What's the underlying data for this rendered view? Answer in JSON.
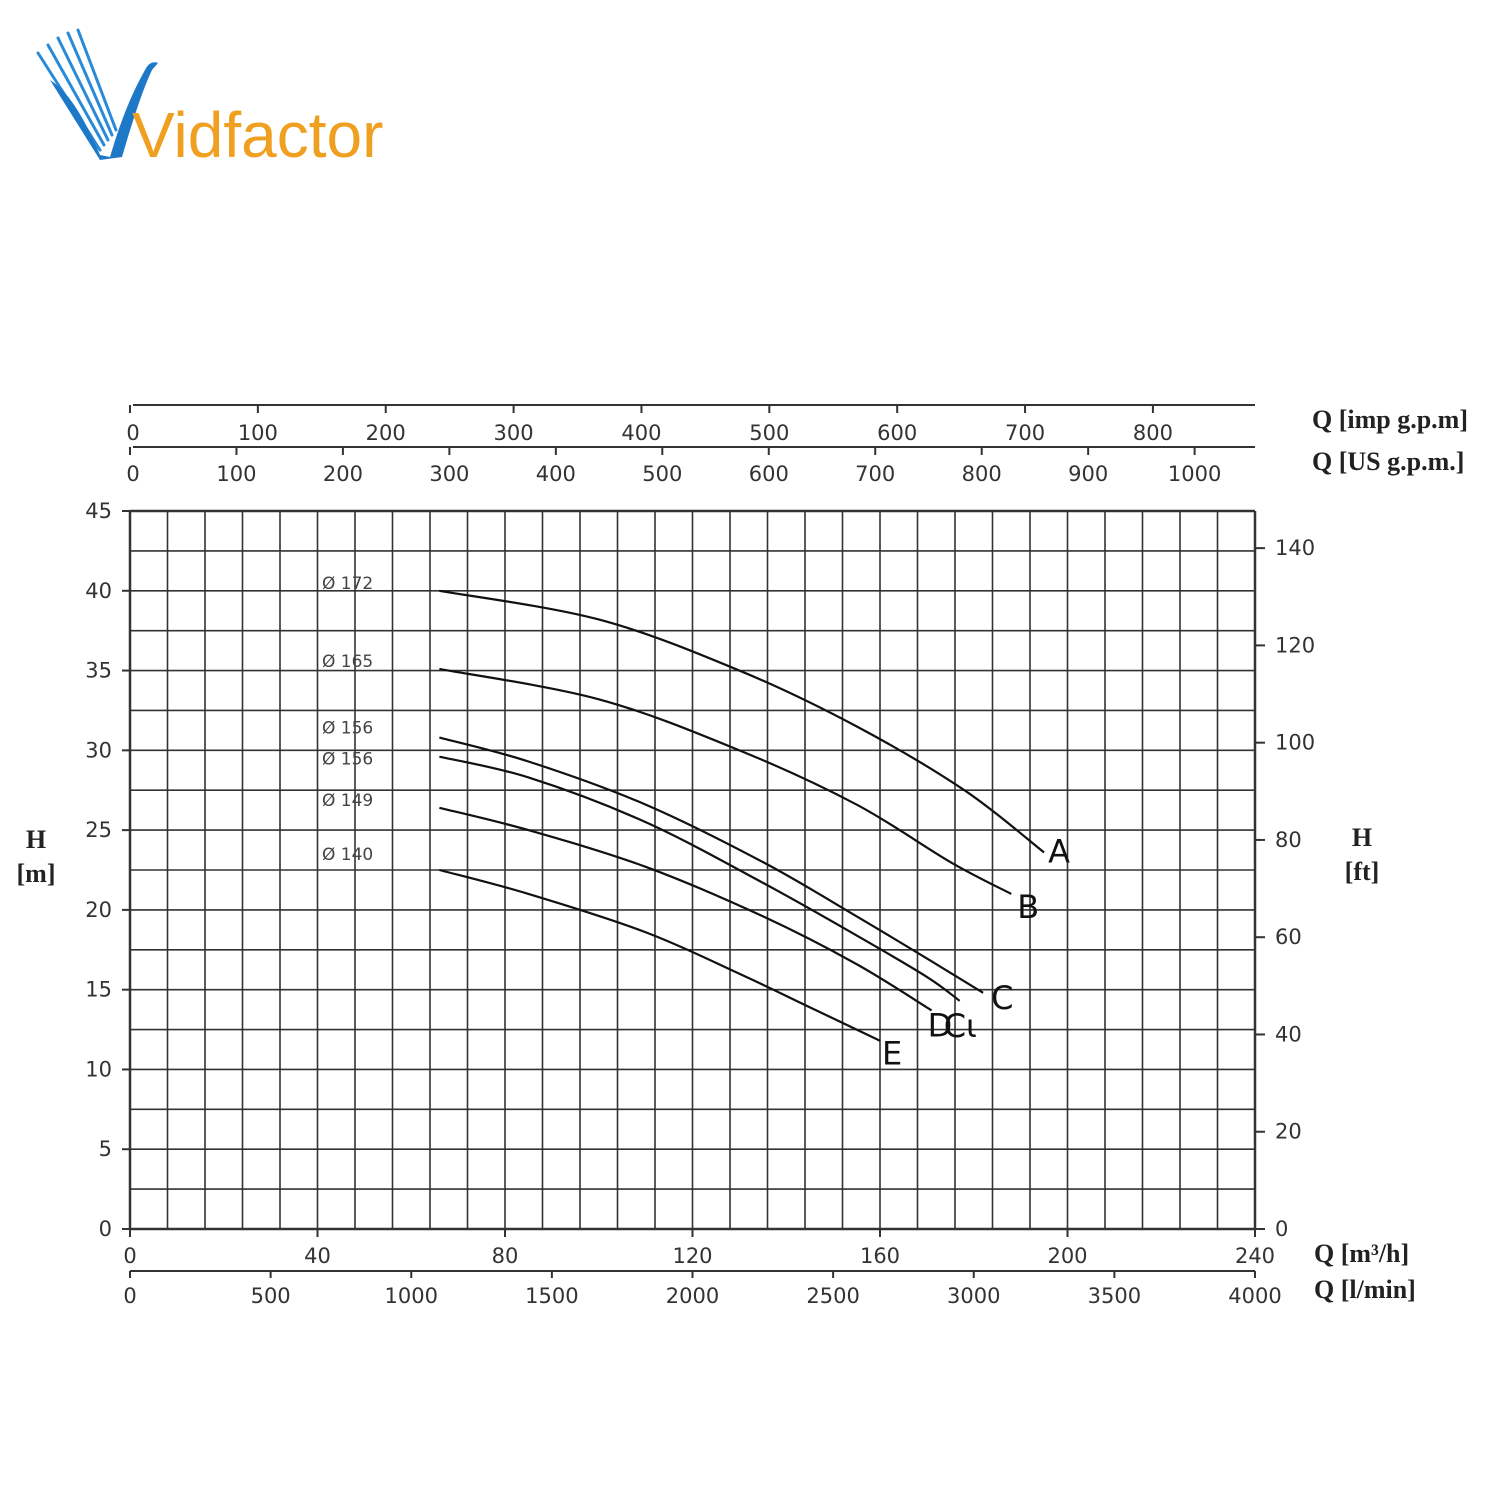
{
  "logo": {
    "text": "Vidfactor",
    "icon": "bird-v-icon",
    "colors": {
      "blue": "#1e78c8",
      "orange": "#f0a020"
    }
  },
  "chart_data": {
    "type": "line",
    "grid": true,
    "x": {
      "label": "Q [m³/h]",
      "range": [
        0,
        240
      ],
      "ticks": [
        0,
        40,
        80,
        120,
        160,
        200,
        240
      ]
    },
    "x2": {
      "label": "Q [l/min]",
      "range": [
        0,
        4000
      ],
      "ticks": [
        0,
        500,
        1000,
        1500,
        2000,
        2500,
        3000,
        3500,
        4000
      ]
    },
    "x_top1": {
      "label": "Q [imp g.p.m]",
      "ticks": [
        0,
        100,
        200,
        300,
        400,
        500,
        600,
        700,
        800
      ]
    },
    "x_top2": {
      "label": "Q [US g.p.m.]",
      "ticks": [
        0,
        100,
        200,
        300,
        400,
        500,
        600,
        700,
        800,
        900,
        1000
      ]
    },
    "y": {
      "label_line1": "H",
      "label_line2": "[m]",
      "range": [
        0,
        45
      ],
      "ticks": [
        0,
        5,
        10,
        15,
        20,
        25,
        30,
        35,
        40,
        45
      ]
    },
    "y2": {
      "label_line1": "H",
      "label_line2": "[ft]",
      "ticks": [
        0,
        20,
        40,
        60,
        80,
        100,
        120,
        140
      ]
    },
    "series": [
      {
        "name": "A",
        "diameter": "Ø 172",
        "color": "#111111",
        "label_color": "#111111",
        "points": [
          [
            66,
            40
          ],
          [
            100,
            38.2
          ],
          [
            130,
            35
          ],
          [
            155,
            31.5
          ],
          [
            178,
            27.5
          ],
          [
            195,
            23.6
          ]
        ]
      },
      {
        "name": "B",
        "diameter": "Ø 165",
        "color": "#111111",
        "label_color": "#111111",
        "points": [
          [
            66,
            35.1
          ],
          [
            100,
            33.2
          ],
          [
            130,
            30
          ],
          [
            155,
            26.6
          ],
          [
            175,
            23
          ],
          [
            188,
            21
          ]
        ]
      },
      {
        "name": "C",
        "diameter": "Ø 156",
        "color": "#111111",
        "label_color": "#e02020",
        "points": [
          [
            66,
            30.8
          ],
          [
            85,
            29.3
          ],
          [
            110,
            26.6
          ],
          [
            135,
            23
          ],
          [
            155,
            19.6
          ],
          [
            172,
            16.6
          ],
          [
            182,
            14.8
          ]
        ]
      },
      {
        "name": "C1",
        "label": "Cι",
        "diameter": "Ø 156",
        "color": "#111111",
        "label_color": "#111111",
        "points": [
          [
            66,
            29.6
          ],
          [
            85,
            28.3
          ],
          [
            110,
            25.5
          ],
          [
            135,
            21.7
          ],
          [
            155,
            18.4
          ],
          [
            170,
            15.8
          ],
          [
            177,
            14.3
          ]
        ]
      },
      {
        "name": "D",
        "diameter": "Ø 149",
        "color": "#111111",
        "label_color": "#111111",
        "points": [
          [
            66,
            26.4
          ],
          [
            85,
            25
          ],
          [
            110,
            22.7
          ],
          [
            135,
            19.6
          ],
          [
            155,
            16.6
          ],
          [
            171,
            13.7
          ]
        ]
      },
      {
        "name": "E",
        "diameter": "Ø 140",
        "color": "#111111",
        "label_color": "#111111",
        "points": [
          [
            66,
            22.5
          ],
          [
            85,
            21
          ],
          [
            110,
            18.6
          ],
          [
            130,
            16
          ],
          [
            145,
            13.9
          ],
          [
            160,
            11.8
          ]
        ]
      }
    ]
  }
}
